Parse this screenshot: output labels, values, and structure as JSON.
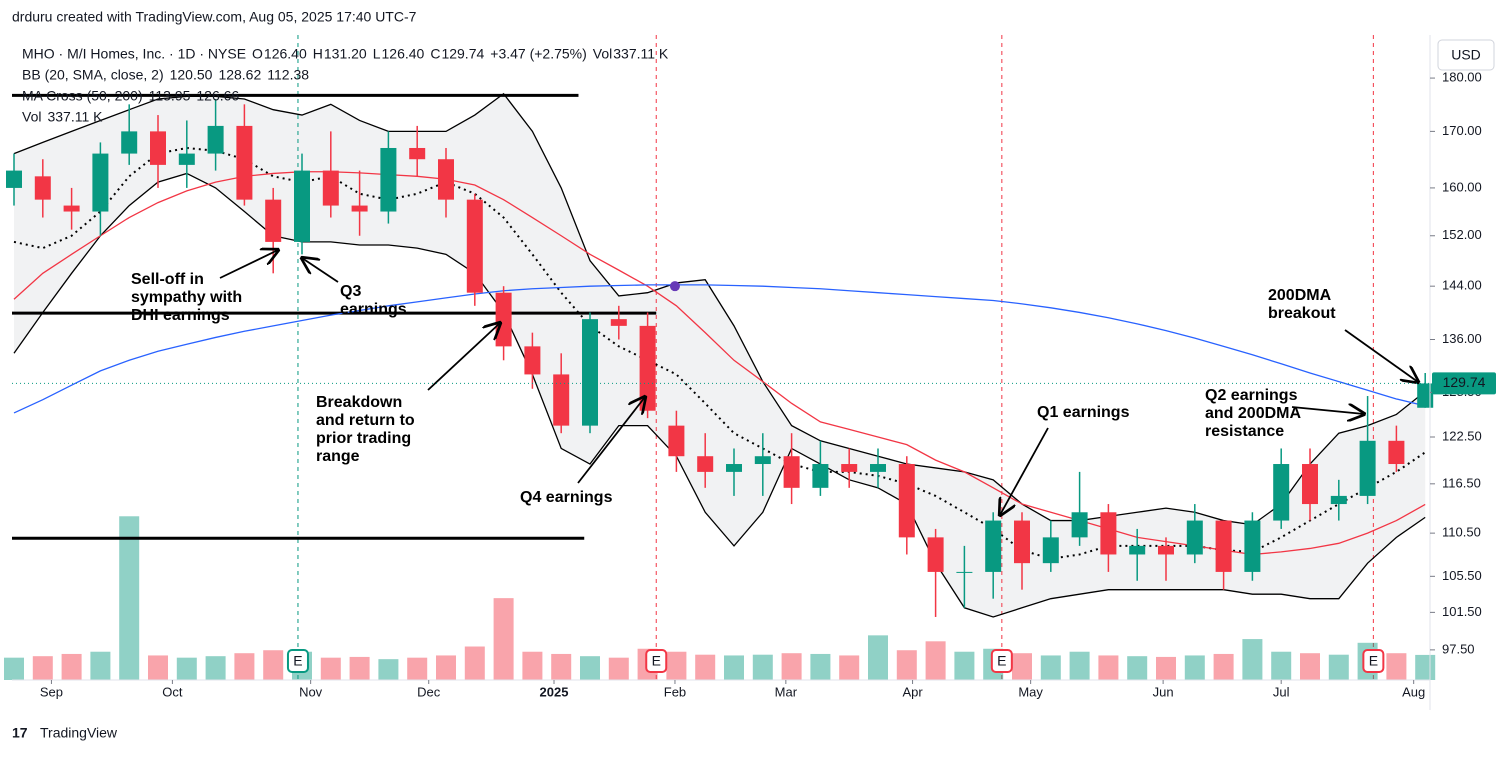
{
  "header": "drduru created with TradingView.com, Aug 05, 2025 17:40 UTC-7",
  "footer": "TradingView",
  "currency": "USD",
  "legend": {
    "symbol": "MHO · M/I Homes, Inc. · 1D · NYSE",
    "ohlc": [
      {
        "key": "O",
        "value": "126.40"
      },
      {
        "key": "H",
        "value": "131.20"
      },
      {
        "key": "L",
        "value": "126.40"
      },
      {
        "key": "C",
        "value": "129.74"
      }
    ],
    "change": "+3.47 (+2.75%)",
    "vol_key": "Vol",
    "vol_value": "337.11 K",
    "bb": "BB (20, SMA, close, 2)",
    "bb_values": [
      "120.50",
      "128.62",
      "112.38"
    ],
    "ma": "MA Cross (50, 200)",
    "ma_values": [
      "113.95",
      "126.66"
    ],
    "vol": "Vol",
    "vol_value2": "337.11 K"
  },
  "chart_data": {
    "type": "candlestick",
    "log_scale": true,
    "up_color": "#089981",
    "down_color": "#f23645",
    "open": [
      160,
      162,
      157,
      156,
      166,
      170,
      164,
      166,
      171,
      158,
      151,
      163,
      157,
      156,
      167,
      165,
      158,
      143,
      135,
      131,
      124,
      139,
      138,
      124,
      120,
      118,
      119,
      120,
      116,
      119,
      118,
      119,
      110,
      106,
      106,
      112,
      107,
      110,
      113,
      108,
      109,
      108,
      112,
      106,
      112,
      119,
      114,
      115,
      122,
      126.4
    ],
    "high": [
      166,
      165,
      160,
      168,
      175,
      173,
      172,
      176,
      175,
      160,
      166,
      170,
      163,
      170,
      171,
      167,
      159,
      144,
      137,
      134,
      140,
      141,
      140,
      126,
      123,
      121,
      123,
      123,
      122,
      121,
      121,
      120,
      111,
      109,
      113,
      113,
      112,
      118,
      114,
      111,
      110,
      114,
      112,
      113,
      121,
      121,
      117,
      128,
      124,
      131.2
    ],
    "low": [
      157,
      155,
      153,
      152,
      164,
      160,
      160,
      163,
      157,
      146,
      149,
      155,
      152,
      154,
      162,
      155,
      141,
      133,
      129,
      123,
      123,
      136,
      125,
      118,
      116,
      115,
      115,
      114,
      115,
      116,
      116,
      108,
      101,
      102,
      103,
      104,
      106,
      109,
      106,
      105,
      105,
      107,
      104,
      105,
      111,
      112,
      112,
      114,
      118,
      126.4
    ],
    "close": [
      163,
      158,
      156,
      166,
      170,
      164,
      166,
      171,
      158,
      151,
      163,
      157,
      156,
      167,
      165,
      158,
      143,
      135,
      131,
      124,
      139,
      138,
      126,
      120,
      118,
      119,
      120,
      116,
      119,
      118,
      119,
      110,
      106,
      106,
      112,
      107,
      110,
      113,
      108,
      109,
      108,
      112,
      106,
      112,
      119,
      114,
      115,
      122,
      119,
      129.74
    ],
    "volume": [
      300,
      320,
      350,
      380,
      2200,
      330,
      300,
      320,
      360,
      400,
      380,
      300,
      310,
      280,
      300,
      330,
      450,
      1100,
      380,
      350,
      320,
      300,
      420,
      380,
      340,
      330,
      340,
      360,
      350,
      330,
      600,
      400,
      520,
      380,
      420,
      360,
      330,
      380,
      330,
      320,
      310,
      330,
      350,
      550,
      380,
      360,
      340,
      500,
      360,
      337.11
    ],
    "vlim": [
      0,
      4300
    ],
    "lines": [
      {
        "color": "#000000",
        "dash": true,
        "values": [
          151,
          150,
          152,
          156,
          162,
          166,
          167,
          166.5,
          165,
          162,
          161,
          162,
          159,
          158,
          159,
          161,
          159,
          155,
          149,
          143,
          138,
          135,
          133,
          131,
          127,
          123,
          121,
          119,
          118,
          118,
          117.5,
          116.5,
          115,
          113,
          111,
          108.5,
          107.5,
          108,
          109,
          109,
          109,
          109,
          108.5,
          108.3,
          110,
          112,
          114,
          116,
          118,
          120.5
        ]
      },
      {
        "color": "#000000",
        "band": "upper",
        "values": [
          166,
          168,
          170,
          172,
          174,
          176,
          176.5,
          176.5,
          176,
          174,
          173,
          175,
          172,
          170,
          170,
          170,
          173,
          177,
          170,
          160,
          148,
          142.5,
          143,
          144.5,
          145,
          138,
          130,
          124,
          122,
          121,
          120,
          119,
          118.5,
          118,
          117,
          114,
          112,
          112,
          112.5,
          113,
          113.5,
          113,
          112,
          111.5,
          114,
          119,
          123,
          124,
          125.5,
          128.62
        ]
      },
      {
        "color": "#000000",
        "band": "lower",
        "values": [
          134,
          140,
          146,
          152,
          157,
          161,
          162.5,
          160,
          156,
          152,
          151,
          151,
          150.5,
          150.5,
          150,
          149,
          146,
          140,
          131,
          121,
          119,
          124,
          124,
          120,
          113,
          109,
          113,
          121,
          119,
          117,
          116,
          114,
          107,
          102,
          101,
          102,
          103,
          103.5,
          104,
          104,
          104,
          104,
          104,
          103.5,
          103.5,
          103,
          103,
          107,
          110,
          112.38
        ]
      },
      {
        "color": "#f23645",
        "values": [
          142,
          146,
          149,
          152,
          155,
          157.5,
          159.5,
          161,
          162,
          162.5,
          162.8,
          162.8,
          162.6,
          162.3,
          162,
          161.5,
          160.5,
          158,
          155,
          152,
          149,
          146.5,
          144,
          141,
          137,
          133,
          130,
          127,
          124.5,
          123.5,
          122.5,
          121.5,
          119.5,
          118,
          116,
          114,
          113,
          112,
          111,
          110,
          109.5,
          109,
          108.5,
          108,
          108.3,
          108.7,
          109.3,
          110.5,
          112,
          113.95
        ]
      },
      {
        "color": "#2962ff",
        "values": [
          125.7,
          127.5,
          129.5,
          131.5,
          133,
          134.3,
          135.3,
          136.3,
          137.2,
          138,
          138.8,
          139.6,
          140.3,
          141,
          141.6,
          142.2,
          142.8,
          143.3,
          143.6,
          143.8,
          144,
          144.1,
          144.2,
          144.2,
          144.2,
          144.1,
          144,
          143.8,
          143.6,
          143.3,
          143,
          142.7,
          142.4,
          142.1,
          141.8,
          141.3,
          140.7,
          140,
          139.2,
          138.3,
          137.3,
          136.2,
          135,
          133.8,
          132.5,
          131.2,
          130,
          128.8,
          127.6,
          126.66
        ]
      }
    ],
    "ylim": [
      94.4,
      187.5
    ],
    "yticks": [
      {
        "value": 180,
        "label": "180.00"
      },
      {
        "value": 170,
        "label": "170.00"
      },
      {
        "value": 160,
        "label": "160.00"
      },
      {
        "value": 152,
        "label": "152.00"
      },
      {
        "value": 144,
        "label": "144.00"
      },
      {
        "value": 136,
        "label": "136.00"
      },
      {
        "value": 128.5,
        "label": "128.50"
      },
      {
        "value": 122.5,
        "label": "122.50"
      },
      {
        "value": 116.5,
        "label": "116.50"
      },
      {
        "value": 110.5,
        "label": "110.50"
      },
      {
        "value": 105.5,
        "label": "105.50"
      },
      {
        "value": 101.5,
        "label": "101.50"
      },
      {
        "value": 97.5,
        "label": "97.50"
      }
    ],
    "xticks": [
      {
        "value": 1.3,
        "label": "Sep"
      },
      {
        "value": 5.5,
        "label": "Oct"
      },
      {
        "value": 10.3,
        "label": "Nov"
      },
      {
        "value": 14.4,
        "label": "Dec"
      },
      {
        "value": 18.75,
        "label": "2025"
      },
      {
        "value": 22.95,
        "label": "Feb"
      },
      {
        "value": 26.8,
        "label": "Mar"
      },
      {
        "value": 31.2,
        "label": "Apr"
      },
      {
        "value": 35.3,
        "label": "May"
      },
      {
        "value": 39.9,
        "label": "Jun"
      },
      {
        "value": 44,
        "label": "Jul"
      },
      {
        "value": 48.6,
        "label": "Aug"
      }
    ],
    "last_price": {
      "value": 129.74,
      "label": "129.74",
      "color": "#089981"
    },
    "levels": [
      {
        "value": 176.7,
        "to": 19.6
      },
      {
        "value": 139.9,
        "to": 22.3
      },
      {
        "value": 109.9,
        "to": 19.8
      }
    ],
    "cross": {
      "at": 22.95,
      "value": 144,
      "color": "#673ab7"
    },
    "earnings": [
      {
        "label": "E",
        "at": 9.86,
        "color": "#089981"
      },
      {
        "label": "E",
        "at": 22.3,
        "color": "#f23645"
      },
      {
        "label": "E",
        "at": 34.3,
        "color": "#f23645"
      },
      {
        "label": "E",
        "at": 47.2,
        "color": "#f23645"
      }
    ],
    "annotations": [
      [
        "Sell-off in",
        "sympathy with",
        "DHI earnings"
      ],
      [
        "Q3",
        "earnings"
      ],
      [
        "Breakdown",
        "and return to",
        "prior trading",
        "range"
      ],
      [
        "Q4 earnings"
      ],
      [
        "Q1 earnings"
      ],
      [
        "Q2 earnings",
        "and 200DMA",
        "resistance"
      ],
      [
        "200DMA",
        "breakout"
      ]
    ]
  }
}
